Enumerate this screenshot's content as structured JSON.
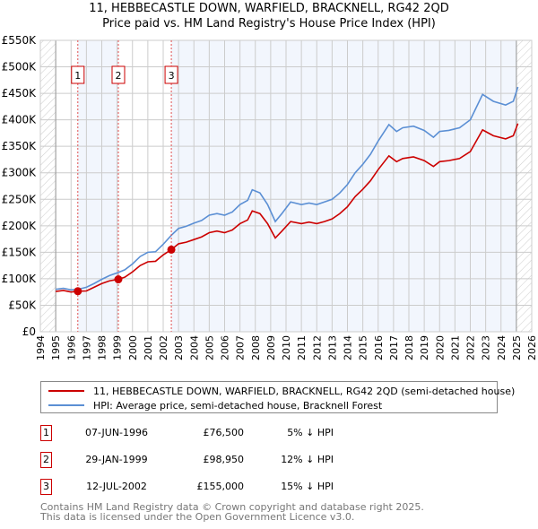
{
  "chart_data": {
    "type": "line",
    "title": "11, HEBBECASTLE DOWN, WARFIELD, BRACKNELL, RG42 2QD",
    "subtitle": "Price paid vs. HM Land Registry's House Price Index (HPI)",
    "xlim": [
      1994,
      2026
    ],
    "ylim": [
      0,
      550000
    ],
    "x_ticks": [
      "1994",
      "1995",
      "1996",
      "1997",
      "1998",
      "1999",
      "2000",
      "2001",
      "2002",
      "2003",
      "2004",
      "2005",
      "2006",
      "2007",
      "2008",
      "2009",
      "2010",
      "2011",
      "2012",
      "2013",
      "2014",
      "2015",
      "2016",
      "2017",
      "2018",
      "2019",
      "2020",
      "2021",
      "2022",
      "2023",
      "2024",
      "2025",
      "2026"
    ],
    "y_ticks": [
      {
        "v": 0,
        "label": "£0"
      },
      {
        "v": 50000,
        "label": "£50K"
      },
      {
        "v": 100000,
        "label": "£100K"
      },
      {
        "v": 150000,
        "label": "£150K"
      },
      {
        "v": 200000,
        "label": "£200K"
      },
      {
        "v": 250000,
        "label": "£250K"
      },
      {
        "v": 300000,
        "label": "£300K"
      },
      {
        "v": 350000,
        "label": "£350K"
      },
      {
        "v": 400000,
        "label": "£400K"
      },
      {
        "v": 450000,
        "label": "£450K"
      },
      {
        "v": 500000,
        "label": "£500K"
      },
      {
        "v": 550000,
        "label": "£550K"
      }
    ],
    "grid": true,
    "x": [
      1995,
      1995.5,
      1996,
      1996.44,
      1997,
      1997.5,
      1998,
      1998.5,
      1999.08,
      1999.5,
      2000,
      2000.5,
      2001,
      2001.5,
      2002,
      2002.53,
      2003,
      2003.5,
      2004,
      2004.5,
      2005,
      2005.5,
      2006,
      2006.5,
      2007,
      2007.5,
      2007.8,
      2008.3,
      2008.8,
      2009.3,
      2009.7,
      2010.3,
      2011,
      2011.5,
      2012,
      2012.5,
      2013,
      2013.5,
      2014,
      2014.5,
      2015,
      2015.5,
      2016,
      2016.7,
      2017.2,
      2017.6,
      2018.3,
      2019,
      2019.6,
      2020,
      2020.6,
      2021.3,
      2022,
      2022.8,
      2023.5,
      2024.3,
      2024.8,
      2025.1
    ],
    "series": [
      {
        "name": "11, HEBBECASTLE DOWN, WARFIELD, BRACKNELL, RG42 2QD (semi-detached house)",
        "color": "#cc0000",
        "values": [
          76,
          78,
          75,
          76.5,
          77,
          84,
          91,
          96,
          98.95,
          103,
          113,
          125,
          132,
          133,
          145,
          155,
          166,
          169,
          174,
          179,
          187,
          190,
          187,
          192,
          204,
          211,
          228,
          223,
          204,
          177,
          189,
          208,
          204,
          207,
          204,
          208,
          213,
          223,
          236,
          255,
          269,
          285,
          306,
          332,
          321,
          327,
          330,
          323,
          312,
          321,
          323,
          327,
          340,
          381,
          370,
          364,
          370,
          393
        ]
      },
      {
        "name": "HPI: Average price, semi-detached house, Bracknell Forest",
        "color": "#5b8fd4",
        "values": [
          80,
          82,
          79,
          80,
          84,
          91,
          99,
          106,
          112,
          117,
          128,
          142,
          150,
          151,
          165,
          182,
          195,
          199,
          205,
          210,
          220,
          223,
          220,
          226,
          240,
          248,
          268,
          262,
          240,
          208,
          222,
          245,
          240,
          243,
          240,
          245,
          250,
          262,
          278,
          300,
          316,
          335,
          360,
          391,
          378,
          385,
          388,
          380,
          367,
          378,
          380,
          385,
          400,
          448,
          435,
          428,
          435,
          462
        ]
      }
    ],
    "value_units": "£K",
    "legend_position": "below",
    "sales": [
      {
        "n": "1",
        "x": 1996.44,
        "price": 76500,
        "date": "07-JUN-1996",
        "price_label": "£76,500",
        "hpi": "5% ↓ HPI"
      },
      {
        "n": "2",
        "x": 1999.08,
        "price": 98950,
        "date": "29-JAN-1999",
        "price_label": "£98,950",
        "hpi": "12% ↓ HPI"
      },
      {
        "n": "3",
        "x": 2002.53,
        "price": 155000,
        "date": "12-JUL-2002",
        "price_label": "£155,000",
        "hpi": "15% ↓ HPI"
      }
    ]
  },
  "header": {
    "line1": "11, HEBBECASTLE DOWN, WARFIELD, BRACKNELL, RG42 2QD",
    "line2": "Price paid vs. HM Land Registry's House Price Index (HPI)"
  },
  "legend": {
    "red": "11, HEBBECASTLE DOWN, WARFIELD, BRACKNELL, RG42 2QD (semi-detached house)",
    "blue": "HPI: Average price, semi-detached house, Bracknell Forest"
  },
  "footer": {
    "line1": "Contains HM Land Registry data © Crown copyright and database right 2025.",
    "line2": "This data is licensed under the Open Government Licence v3.0."
  }
}
